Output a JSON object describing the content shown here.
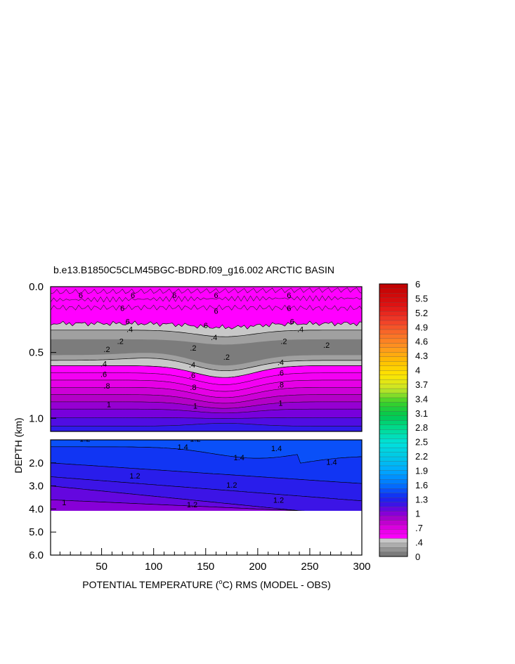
{
  "chart_data": {
    "type": "heatmap",
    "title": "b.e13.B1850C5CLM45BGC-BDRD.f09_g16.002 ARCTIC BASIN",
    "xlabel_prefix": "POTENTIAL TEMPERATURE (",
    "xlabel_unit_sup": "o",
    "xlabel_suffix": "C) RMS (MODEL - OBS)",
    "ylabel": "DEPTH (km)",
    "xlim": [
      1,
      300
    ],
    "x_ticks": [
      "50",
      "100",
      "150",
      "200",
      "250",
      "300"
    ],
    "upper_panel": {
      "ylim": [
        0.0,
        1.1
      ],
      "y_ticks": [
        "0.0",
        "0.5",
        "1.0"
      ]
    },
    "lower_panel": {
      "ylim": [
        1.0,
        6.0
      ],
      "y_ticks": [
        "2.0",
        "3.0",
        "4.0",
        "5.0",
        "6.0"
      ],
      "data_bottom_depth": 4.1
    },
    "colorbar": {
      "labels": [
        "0",
        ".4",
        ".7",
        "1",
        "1.3",
        "1.6",
        "1.9",
        "2.2",
        "2.5",
        "2.8",
        "3.1",
        "3.4",
        "3.7",
        "4",
        "4.3",
        "4.6",
        "4.9",
        "5.2",
        "5.5",
        "6"
      ],
      "levels": [
        0,
        0.1,
        0.2,
        0.3,
        0.4,
        0.5,
        0.6,
        0.7,
        0.8,
        0.9,
        1.0,
        1.1,
        1.2,
        1.3,
        1.4,
        1.5,
        1.6,
        1.7,
        1.8,
        1.9,
        2.0,
        2.1,
        2.2,
        2.3,
        2.4,
        2.5,
        2.6,
        2.7,
        2.8,
        2.9,
        3.0,
        3.1,
        3.2,
        3.3,
        3.4,
        3.5,
        3.6,
        3.7,
        3.8,
        3.9,
        4.0,
        4.1,
        4.2,
        4.3,
        4.4,
        4.5,
        4.6,
        4.7,
        4.8,
        4.9,
        5.0,
        5.1,
        5.2,
        5.3,
        5.4,
        5.5,
        5.6,
        5.7,
        5.8,
        5.9,
        6.0
      ]
    },
    "contour_labels_upper": [
      {
        "text": "6",
        "x": 30,
        "y": 0.08
      },
      {
        "text": "6",
        "x": 80,
        "y": 0.08
      },
      {
        "text": "6",
        "x": 120,
        "y": 0.08
      },
      {
        "text": "6",
        "x": 160,
        "y": 0.08
      },
      {
        "text": "6",
        "x": 230,
        "y": 0.08
      },
      {
        "text": "6",
        "x": 70,
        "y": 0.18
      },
      {
        "text": "6",
        "x": 160,
        "y": 0.2
      },
      {
        "text": "6",
        "x": 230,
        "y": 0.18
      },
      {
        "text": "6",
        "x": 75,
        "y": 0.28
      },
      {
        "text": "6",
        "x": 150,
        "y": 0.31
      },
      {
        "text": "6",
        "x": 233,
        "y": 0.28
      },
      {
        "text": ".4",
        "x": 77,
        "y": 0.34
      },
      {
        "text": ".4",
        "x": 158,
        "y": 0.4
      },
      {
        "text": ".4",
        "x": 241,
        "y": 0.34
      },
      {
        "text": ".2",
        "x": 68,
        "y": 0.43
      },
      {
        "text": ".2",
        "x": 225,
        "y": 0.43
      },
      {
        "text": ".2",
        "x": 266,
        "y": 0.46
      },
      {
        "text": ".2",
        "x": 55,
        "y": 0.49
      },
      {
        "text": ".2",
        "x": 138,
        "y": 0.48
      },
      {
        "text": ".2",
        "x": 170,
        "y": 0.55
      },
      {
        "text": ".4",
        "x": 52,
        "y": 0.6
      },
      {
        "text": ".4",
        "x": 137,
        "y": 0.61
      },
      {
        "text": ".4",
        "x": 222,
        "y": 0.59
      },
      {
        "text": ".6",
        "x": 52,
        "y": 0.68
      },
      {
        "text": ".6",
        "x": 137,
        "y": 0.69
      },
      {
        "text": ".6",
        "x": 222,
        "y": 0.67
      },
      {
        "text": ".8",
        "x": 55,
        "y": 0.77
      },
      {
        "text": ".8",
        "x": 138,
        "y": 0.78
      },
      {
        "text": ".8",
        "x": 222,
        "y": 0.76
      },
      {
        "text": "1",
        "x": 57,
        "y": 0.91
      },
      {
        "text": "1",
        "x": 140,
        "y": 0.92
      },
      {
        "text": "1",
        "x": 222,
        "y": 0.9
      }
    ],
    "contour_labels_lower": [
      {
        "text": "1.2",
        "x": 34,
        "y": 1.05
      },
      {
        "text": "1.2",
        "x": 140,
        "y": 1.05
      },
      {
        "text": "1.4",
        "x": 128,
        "y": 1.4
      },
      {
        "text": "1.4",
        "x": 182,
        "y": 1.85
      },
      {
        "text": "1.4",
        "x": 218,
        "y": 1.45
      },
      {
        "text": "1.4",
        "x": 271,
        "y": 2.05
      },
      {
        "text": "1.2",
        "x": 82,
        "y": 2.65
      },
      {
        "text": "1.2",
        "x": 175,
        "y": 3.05
      },
      {
        "text": "1.2",
        "x": 220,
        "y": 3.7
      },
      {
        "text": "1.2",
        "x": 137,
        "y": 3.9
      },
      {
        "text": "1",
        "x": 14,
        "y": 3.8
      }
    ]
  }
}
